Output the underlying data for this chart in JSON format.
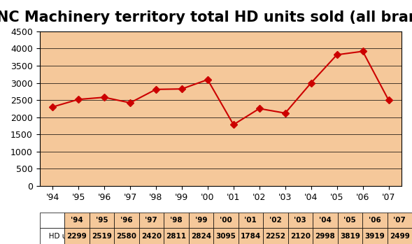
{
  "title": "NC Machinery territory total HD units sold (all brands)",
  "years": [
    "'94",
    "'95",
    "'96",
    "'97",
    "'98",
    "'99",
    "'00",
    "'01",
    "'02",
    "'03",
    "'04",
    "'05",
    "'06",
    "'07"
  ],
  "values": [
    2299,
    2519,
    2580,
    2420,
    2811,
    2824,
    3095,
    1784,
    2252,
    2120,
    2998,
    3819,
    3919,
    2499
  ],
  "legend_label": "HD units",
  "line_color": "#cc0000",
  "marker_color": "#cc0000",
  "bg_color": "#f5c89a",
  "plot_area_color": "#f5c89a",
  "ylim": [
    0,
    4500
  ],
  "yticks": [
    0,
    500,
    1000,
    1500,
    2000,
    2500,
    3000,
    3500,
    4000,
    4500
  ],
  "title_fontsize": 15,
  "axis_fontsize": 9,
  "legend_fontsize": 9,
  "table_bg_color": "#f5c89a",
  "grid_color": "#000000"
}
